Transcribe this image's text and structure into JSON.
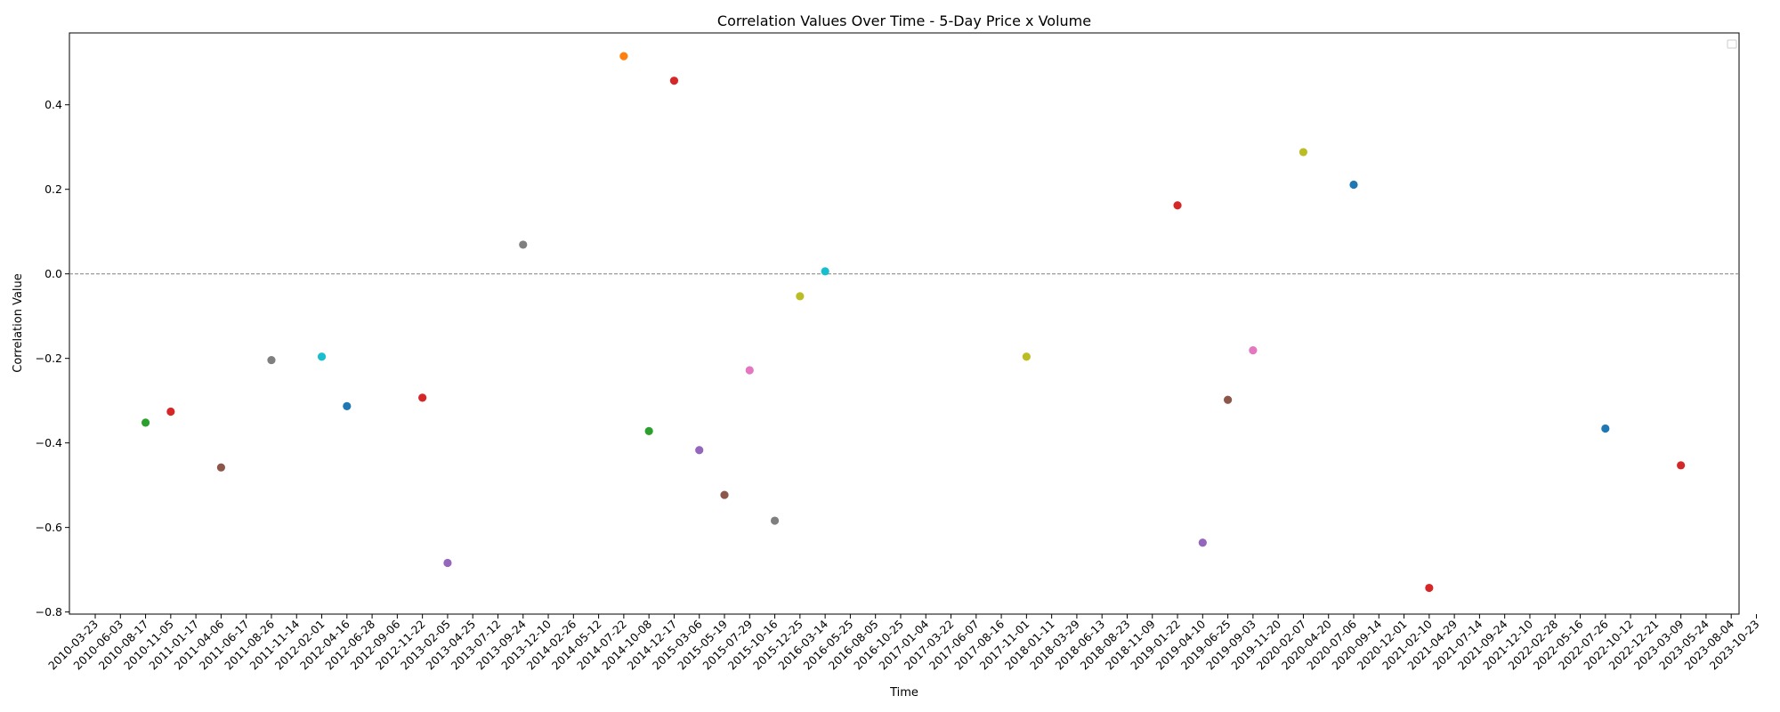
{
  "chart_data": {
    "type": "scatter",
    "title": "Correlation Values Over Time - 5-Day Price x Volume",
    "xlabel": "Time",
    "ylabel": "Correlation Value",
    "ylim": [
      -0.805,
      0.57
    ],
    "yticks": [
      -0.8,
      -0.6,
      -0.4,
      -0.2,
      0.0,
      0.2,
      0.4
    ],
    "ytick_labels": [
      "−0.8",
      "−0.6",
      "−0.4",
      "−0.2",
      "0.0",
      "0.2",
      "0.4"
    ],
    "reference_line": 0.0,
    "grid": false,
    "legend": "top-right (empty)",
    "x_categories": [
      "2010-03-23",
      "2010-06-03",
      "2010-08-17",
      "2010-11-05",
      "2011-01-17",
      "2011-04-06",
      "2011-06-17",
      "2011-08-26",
      "2011-11-14",
      "2012-02-01",
      "2012-04-16",
      "2012-06-28",
      "2012-09-06",
      "2012-11-22",
      "2013-02-05",
      "2013-04-25",
      "2013-07-12",
      "2013-09-24",
      "2013-12-10",
      "2014-02-26",
      "2014-05-12",
      "2014-07-22",
      "2014-10-08",
      "2014-12-17",
      "2015-03-06",
      "2015-05-19",
      "2015-07-29",
      "2015-10-16",
      "2015-12-25",
      "2016-03-14",
      "2016-05-25",
      "2016-08-05",
      "2016-10-25",
      "2017-01-04",
      "2017-03-22",
      "2017-06-07",
      "2017-08-16",
      "2017-11-01",
      "2018-01-11",
      "2018-03-29",
      "2018-06-13",
      "2018-08-23",
      "2018-11-09",
      "2019-01-22",
      "2019-04-10",
      "2019-06-25",
      "2019-09-03",
      "2019-11-20",
      "2020-02-07",
      "2020-04-20",
      "2020-07-06",
      "2020-09-14",
      "2020-12-01",
      "2021-02-10",
      "2021-04-29",
      "2021-07-14",
      "2021-09-24",
      "2021-12-10",
      "2022-02-28",
      "2022-05-16",
      "2022-07-26",
      "2022-10-12",
      "2022-12-21",
      "2023-03-09",
      "2023-05-24",
      "2023-08-04",
      "2023-10-23"
    ],
    "points": [
      {
        "x": "2010-08-17",
        "y": -0.352,
        "color": "#2ca02c"
      },
      {
        "x": "2010-11-05",
        "y": -0.326,
        "color": "#d62728"
      },
      {
        "x": "2011-04-06",
        "y": -0.458,
        "color": "#8c564b"
      },
      {
        "x": "2011-08-26",
        "y": -0.204,
        "color": "#7f7f7f"
      },
      {
        "x": "2012-02-01",
        "y": -0.196,
        "color": "#17becf"
      },
      {
        "x": "2012-04-16",
        "y": -0.313,
        "color": "#1f77b4"
      },
      {
        "x": "2012-11-22",
        "y": -0.293,
        "color": "#d62728"
      },
      {
        "x": "2013-02-05",
        "y": -0.684,
        "color": "#9467bd"
      },
      {
        "x": "2013-09-24",
        "y": 0.069,
        "color": "#7f7f7f"
      },
      {
        "x": "2014-07-22",
        "y": 0.515,
        "color": "#ff7f0e"
      },
      {
        "x": "2014-10-08",
        "y": -0.372,
        "color": "#2ca02c"
      },
      {
        "x": "2014-12-17",
        "y": 0.457,
        "color": "#d62728"
      },
      {
        "x": "2015-03-06",
        "y": -0.417,
        "color": "#9467bd"
      },
      {
        "x": "2015-05-19",
        "y": -0.523,
        "color": "#8c564b"
      },
      {
        "x": "2015-07-29",
        "y": -0.228,
        "color": "#e377c2"
      },
      {
        "x": "2015-10-16",
        "y": -0.584,
        "color": "#7f7f7f"
      },
      {
        "x": "2015-12-25",
        "y": -0.053,
        "color": "#bcbd22"
      },
      {
        "x": "2016-03-14",
        "y": 0.006,
        "color": "#17becf"
      },
      {
        "x": "2017-11-01",
        "y": -0.196,
        "color": "#bcbd22"
      },
      {
        "x": "2019-01-22",
        "y": 0.162,
        "color": "#d62728"
      },
      {
        "x": "2019-04-10",
        "y": -0.636,
        "color": "#9467bd"
      },
      {
        "x": "2019-06-25",
        "y": -0.298,
        "color": "#8c564b"
      },
      {
        "x": "2019-09-03",
        "y": -0.181,
        "color": "#e377c2"
      },
      {
        "x": "2020-02-07",
        "y": 0.288,
        "color": "#bcbd22"
      },
      {
        "x": "2020-07-06",
        "y": 0.211,
        "color": "#1f77b4"
      },
      {
        "x": "2021-02-10",
        "y": -0.743,
        "color": "#d62728"
      },
      {
        "x": "2022-07-26",
        "y": -0.366,
        "color": "#1f77b4"
      },
      {
        "x": "2023-03-09",
        "y": -0.453,
        "color": "#d62728"
      }
    ]
  }
}
